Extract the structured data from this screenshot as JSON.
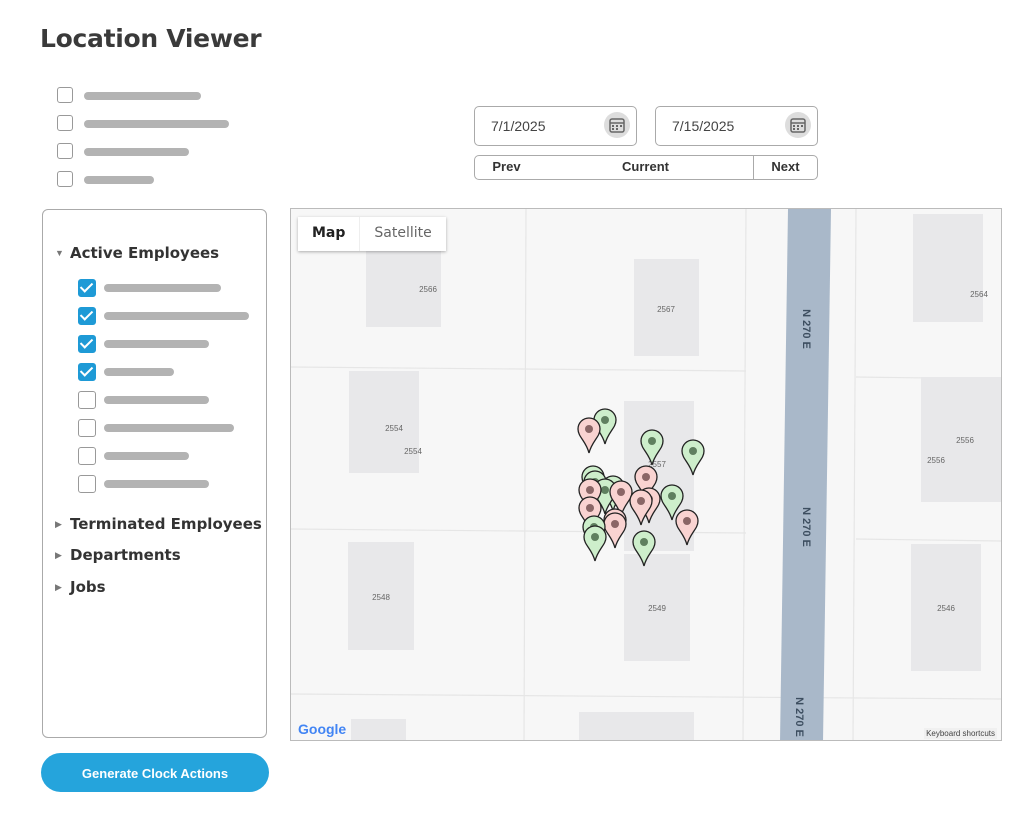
{
  "page_title": "Location Viewer",
  "filters": [
    {
      "checked": false
    },
    {
      "checked": false
    },
    {
      "checked": false
    },
    {
      "checked": false
    }
  ],
  "date_range": {
    "start": "7/1/2025",
    "end": "7/15/2025",
    "prev_label": "Prev",
    "current_label": "Current",
    "next_label": "Next"
  },
  "tree": {
    "active": {
      "label": "Active Employees",
      "expanded": true,
      "employees": [
        {
          "checked": true
        },
        {
          "checked": true
        },
        {
          "checked": true
        },
        {
          "checked": true
        },
        {
          "checked": false
        },
        {
          "checked": false
        },
        {
          "checked": false
        },
        {
          "checked": false
        }
      ]
    },
    "terminated": "Terminated Employees",
    "departments": "Departments",
    "jobs": "Jobs"
  },
  "map": {
    "map_tab": "Map",
    "satellite_tab": "Satellite",
    "active_tab": "Map",
    "street_label": "N 270 E",
    "building_labels": [
      "2566",
      "2567",
      "2564",
      "2554",
      "2554",
      "2556",
      "2556",
      "2557",
      "2548",
      "2549",
      "2546"
    ],
    "logo": "Google",
    "keyboard_shortcuts": "Keyboard shortcuts",
    "marker_colors": {
      "clock_in": "#cdeecb",
      "clock_out": "#f9d3d1"
    }
  },
  "generate_button": "Generate Clock Actions"
}
